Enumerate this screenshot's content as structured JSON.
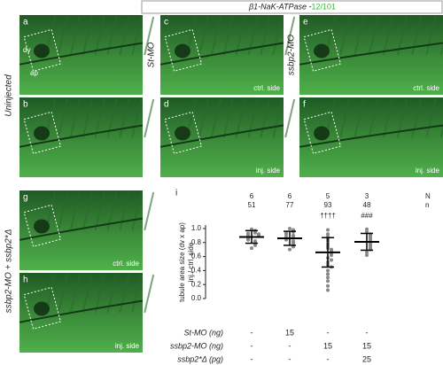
{
  "header": {
    "title": "β1-NaK-ATPase -",
    "count": "12/101"
  },
  "row_labels": [
    "Uninjected",
    "St-MO",
    "ssbp2-MO",
    "ssbp2-MO + ssbp2*Δ"
  ],
  "panels": [
    {
      "label": "a",
      "dv": "dv",
      "ap": "ap"
    },
    {
      "label": "b"
    },
    {
      "label": "c",
      "side": "ctrl. side"
    },
    {
      "label": "d",
      "side": "inj. side"
    },
    {
      "label": "e",
      "side": "ctrl. side"
    },
    {
      "label": "f",
      "side": "inj. side"
    },
    {
      "label": "g",
      "side": "ctrl. side"
    },
    {
      "label": "h",
      "side": "inj. side"
    }
  ],
  "chart_data": {
    "type": "scatter",
    "panel_label": "i",
    "ylabel": [
      "tubule area size (dv x ap)",
      "inj./ ctrl. side"
    ],
    "ylim": [
      0,
      1.05
    ],
    "yticks": [
      {
        "value": 0,
        "label": "0.0"
      },
      {
        "value": 0.2,
        "label": "0.2"
      },
      {
        "value": 0.4,
        "label": "0.4"
      },
      {
        "value": 0.6,
        "label": "0.6"
      },
      {
        "value": 0.8,
        "label": "0.8"
      },
      {
        "value": 1.0,
        "label": "1.0"
      }
    ],
    "N_label": "N",
    "n_label": "n",
    "N": [
      6,
      6,
      5,
      3
    ],
    "n": [
      51,
      77,
      93,
      48
    ],
    "annotations": [
      null,
      null,
      "††††",
      "###"
    ],
    "color": "#888888",
    "groups": [
      {
        "mean": 0.88,
        "sd": 0.09,
        "values": [
          0.99,
          0.97,
          0.95,
          0.94,
          0.93,
          0.92,
          0.91,
          0.9,
          0.89,
          0.88,
          0.87,
          0.86,
          0.85,
          0.84,
          0.82,
          0.8,
          0.78,
          0.76,
          0.72
        ]
      },
      {
        "mean": 0.86,
        "sd": 0.1,
        "values": [
          1.0,
          0.98,
          0.96,
          0.95,
          0.93,
          0.92,
          0.9,
          0.89,
          0.88,
          0.87,
          0.86,
          0.85,
          0.84,
          0.82,
          0.8,
          0.78,
          0.76,
          0.74,
          0.7
        ]
      },
      {
        "mean": 0.66,
        "sd": 0.21,
        "values": [
          0.98,
          0.92,
          0.88,
          0.85,
          0.82,
          0.78,
          0.75,
          0.72,
          0.7,
          0.68,
          0.66,
          0.64,
          0.62,
          0.58,
          0.55,
          0.52,
          0.48,
          0.45,
          0.4,
          0.35,
          0.3,
          0.25,
          0.18,
          0.12
        ]
      },
      {
        "mean": 0.81,
        "sd": 0.12,
        "values": [
          0.99,
          0.95,
          0.92,
          0.9,
          0.88,
          0.86,
          0.84,
          0.82,
          0.8,
          0.78,
          0.76,
          0.74,
          0.72,
          0.7,
          0.66,
          0.62
        ]
      }
    ],
    "conditions": [
      {
        "label": "St-MO (ng)",
        "values": [
          "-",
          "15",
          "-",
          "-"
        ]
      },
      {
        "label": "ssbp2-MO (ng)",
        "values": [
          "-",
          "-",
          "15",
          "15"
        ]
      },
      {
        "label": "ssbp2*Δ (pg)",
        "values": [
          "-",
          "-",
          "-",
          "25"
        ]
      }
    ]
  }
}
